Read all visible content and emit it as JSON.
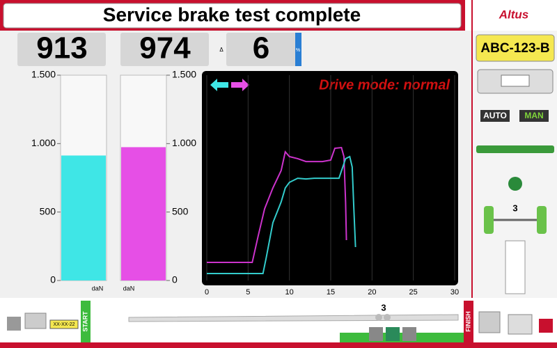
{
  "header": {
    "title": "Service brake test complete",
    "brand": "Altus"
  },
  "readouts": {
    "delta_symbol": "Δ",
    "delta": "6",
    "delta_unit": "%"
  },
  "gauges": {
    "ylim": [
      0,
      1500
    ],
    "yticks": [
      0,
      500,
      {
        "value": 1000,
        "label": "1.000"
      },
      {
        "value": 1500,
        "label": "1.500"
      }
    ],
    "unit": "daN",
    "left": {
      "value": 913,
      "color": "#3fe6e6"
    },
    "right": {
      "value": 974,
      "color": "#e64fe6"
    }
  },
  "graph": {
    "type": "line",
    "title": "Drive mode: normal",
    "xlim": [
      0,
      30
    ],
    "xticks": [
      0,
      5,
      10,
      15,
      20,
      25,
      30
    ],
    "ylim": [
      0,
      1500
    ],
    "grid": true,
    "series": [
      {
        "color": "#cc33cc",
        "x": [
          0,
          5.5,
          6.2,
          7,
          8,
          9,
          9.5,
          10,
          11,
          12,
          13,
          14,
          15,
          15.5,
          16.3,
          16.6,
          16.8,
          16.9
        ],
        "values": [
          132,
          132,
          320,
          524,
          676,
          803,
          940,
          905,
          890,
          869,
          869,
          869,
          880,
          966,
          971,
          905,
          574,
          295
        ]
      },
      {
        "color": "#33cccc",
        "x": [
          0,
          6.8,
          7.2,
          8,
          9,
          9.5,
          10,
          11,
          12,
          13,
          15,
          16,
          16.8,
          17.3,
          17.6,
          17.8,
          18
        ],
        "values": [
          51,
          51,
          168,
          422,
          574,
          676,
          717,
          747,
          742,
          747,
          747,
          747,
          890,
          905,
          829,
          524,
          244
        ]
      }
    ]
  },
  "sidebar": {
    "plate": "ABC-123-B",
    "auto": "AUTO",
    "man": "MAN",
    "axle": "3"
  },
  "footer": {
    "plate": "XX-XX-22",
    "start": "START",
    "finish": "FINISH",
    "step": "3"
  }
}
